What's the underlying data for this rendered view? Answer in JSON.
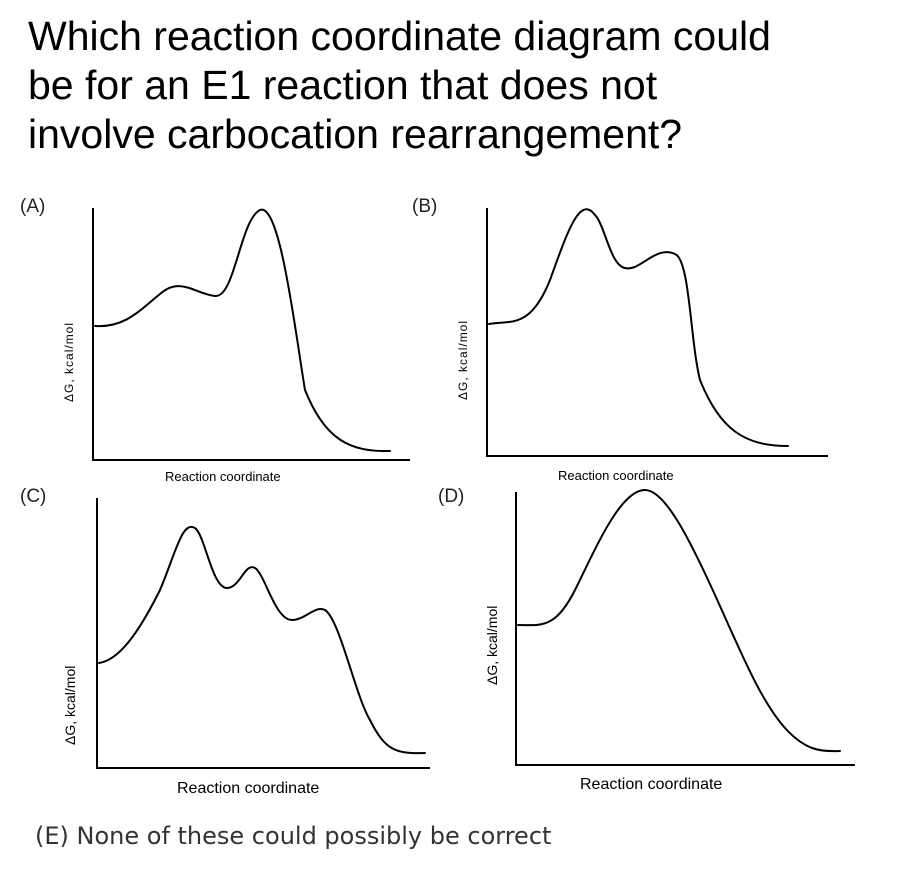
{
  "question": {
    "line1": "Which reaction coordinate diagram could",
    "line2": "be for an E1 reaction that does not",
    "line3": "involve carbocation rearrangement?"
  },
  "panels": {
    "A": {
      "letter": "(A)",
      "ylabel": "ΔG, kcal/mol",
      "xlabel": "Reaction coordinate"
    },
    "B": {
      "letter": "(B)",
      "ylabel": "ΔG, kcal/mol",
      "xlabel": "Reaction coordinate"
    },
    "C": {
      "letter": "(C)",
      "ylabel": "ΔG, kcal/mol",
      "xlabel": "Reaction coordinate"
    },
    "D": {
      "letter": "(D)",
      "ylabel": "ΔG, kcal/mol",
      "xlabel": "Reaction coordinate"
    }
  },
  "option_e": "(E) None of these could possibly be correct"
}
